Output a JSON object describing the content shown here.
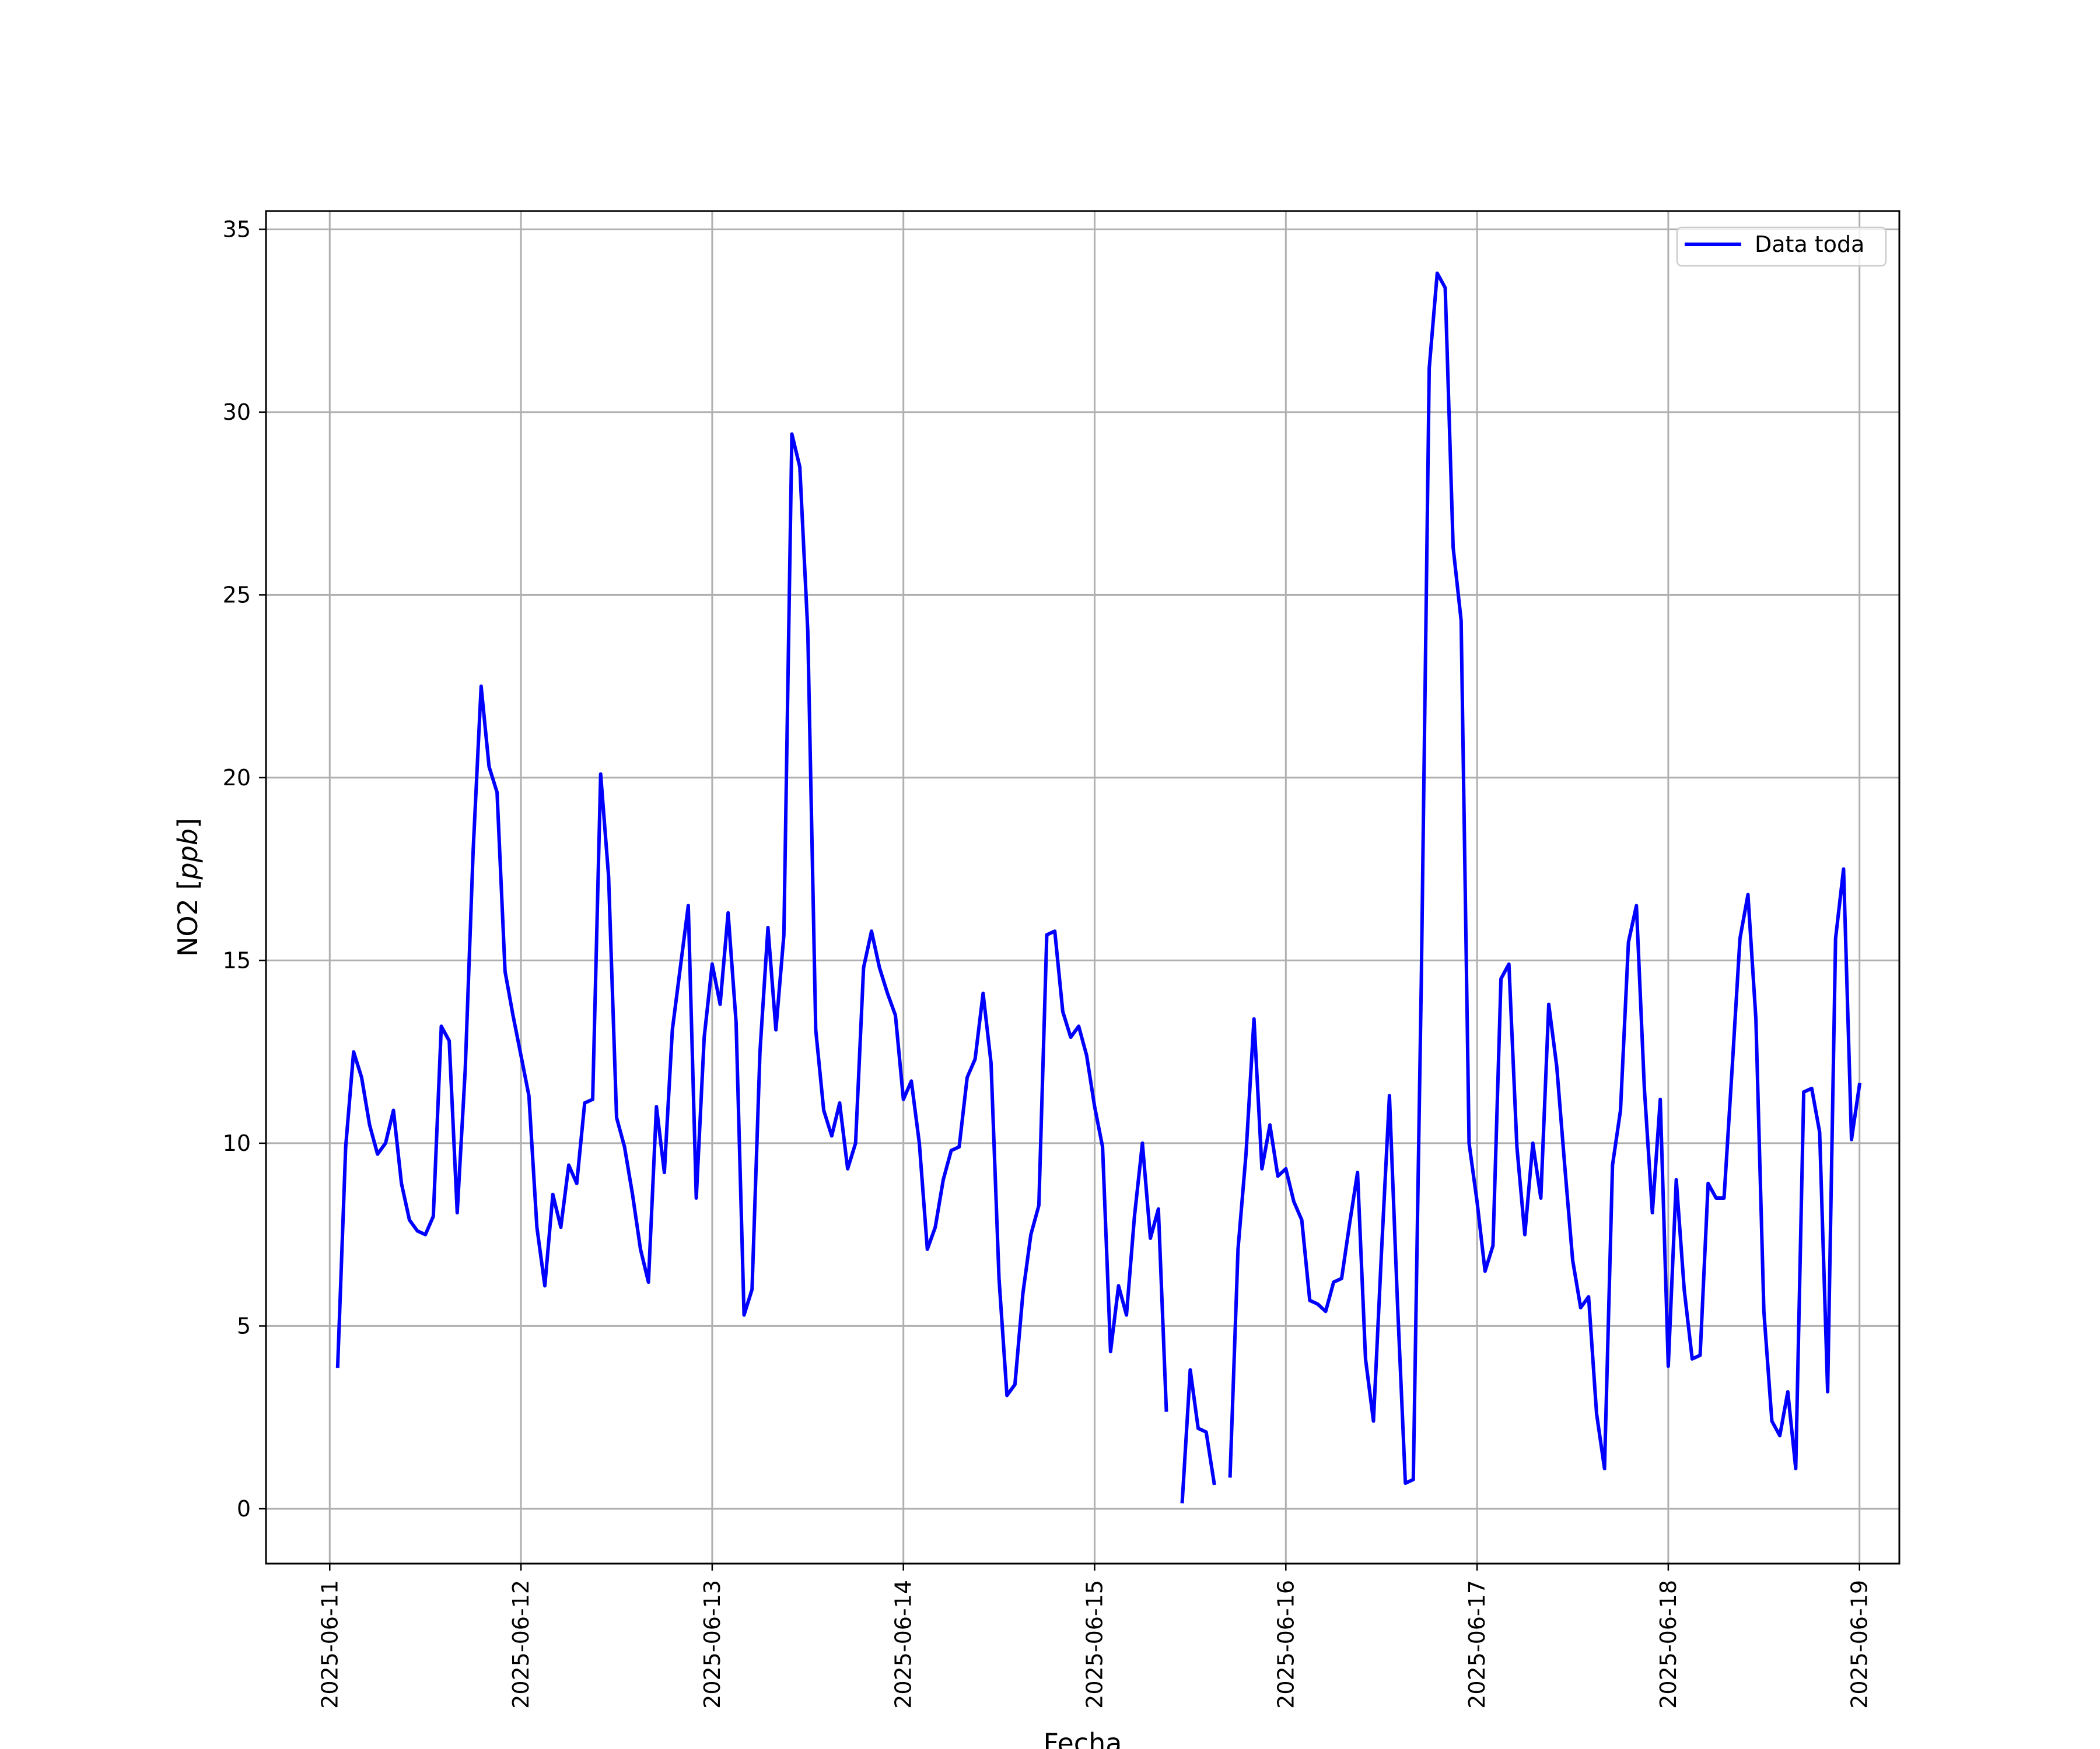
{
  "chart_data": {
    "type": "line",
    "title": "",
    "xlabel": "Fecha",
    "ylabel_text": "NO2 [",
    "ylabel_unit": "ppb",
    "ylabel_close": "]",
    "x_start": "2025-06-11T00:00",
    "x_end": "2025-06-19T00:00",
    "xlim": [
      "2025-06-10T16:00",
      "2025-06-19T05:00"
    ],
    "ylim": [
      -1.5,
      35.5
    ],
    "xticks": [
      "2025-06-11",
      "2025-06-12",
      "2025-06-13",
      "2025-06-14",
      "2025-06-15",
      "2025-06-16",
      "2025-06-17",
      "2025-06-18",
      "2025-06-19"
    ],
    "yticks": [
      "0",
      "5",
      "10",
      "15",
      "20",
      "25",
      "30",
      "35"
    ],
    "ytick_values": [
      0,
      5,
      10,
      15,
      20,
      25,
      30,
      35
    ],
    "grid": true,
    "legend": {
      "placement": "top-right",
      "entries": [
        "Data toda"
      ]
    },
    "series": [
      {
        "name": "Data toda",
        "color": "#0000ff",
        "interval_hours": 1,
        "start": "2025-06-11T01:00",
        "values": [
          3.9,
          9.9,
          12.5,
          11.8,
          10.5,
          9.7,
          10.0,
          10.9,
          8.9,
          7.9,
          7.6,
          7.5,
          8.0,
          13.2,
          12.8,
          8.1,
          12.0,
          18.0,
          22.5,
          20.3,
          19.6,
          14.7,
          13.5,
          12.4,
          11.3,
          7.7,
          6.1,
          8.6,
          7.7,
          9.4,
          8.9,
          11.1,
          11.2,
          20.1,
          17.3,
          10.7,
          9.9,
          8.6,
          7.1,
          6.2,
          11.0,
          9.2,
          13.1,
          14.8,
          16.5,
          8.5,
          12.9,
          14.9,
          13.8,
          16.3,
          13.3,
          5.3,
          6.0,
          12.5,
          15.9,
          13.1,
          15.7,
          29.4,
          28.5,
          24.0,
          13.1,
          10.9,
          10.2,
          11.1,
          9.3,
          10.0,
          14.8,
          15.8,
          14.8,
          14.1,
          13.5,
          11.2,
          11.7,
          10.0,
          7.1,
          7.7,
          9.0,
          9.8,
          9.9,
          11.8,
          12.3,
          14.1,
          12.2,
          6.3,
          3.1,
          3.4,
          5.9,
          7.5,
          8.3,
          15.7,
          15.8,
          13.6,
          12.9,
          13.2,
          12.4,
          11.0,
          9.9,
          4.3,
          6.1,
          5.3,
          8.0,
          10.0,
          7.4,
          8.2,
          2.7,
          null,
          0.2,
          3.8,
          2.2,
          2.1,
          0.7,
          null,
          0.9,
          7.1,
          9.7,
          13.4,
          9.3,
          10.5,
          9.1,
          9.3,
          8.4,
          7.9,
          5.7,
          5.6,
          5.4,
          6.2,
          6.3,
          7.8,
          9.2,
          4.1,
          2.4,
          7.0,
          11.3,
          5.7,
          0.7,
          0.8,
          14.4,
          31.2,
          33.8,
          33.4,
          26.3,
          24.3,
          10.0,
          8.4,
          6.5,
          7.2,
          14.5,
          14.9,
          9.9,
          7.5,
          10.0,
          8.5,
          13.8,
          12.1,
          9.4,
          6.8,
          5.5,
          5.8,
          2.6,
          1.1,
          9.4,
          10.9,
          15.5,
          16.5,
          11.5,
          8.1,
          11.2,
          3.9,
          9.0,
          6.0,
          4.1,
          4.2,
          8.9,
          8.5,
          8.5,
          12.0,
          15.6,
          16.8,
          13.4,
          5.4,
          2.4,
          2.0,
          3.2,
          1.1,
          11.4,
          11.5,
          10.3,
          3.2,
          15.6,
          17.5,
          10.1,
          11.6
        ]
      }
    ]
  }
}
